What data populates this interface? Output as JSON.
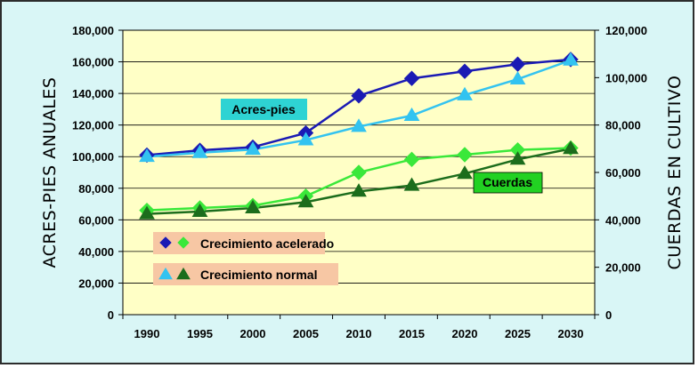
{
  "chart_data": {
    "type": "line",
    "title": "",
    "x": [
      1990,
      1995,
      2000,
      2005,
      2010,
      2015,
      2020,
      2025,
      2030
    ],
    "x_tick_labels": [
      "1990",
      "1995",
      "2000",
      "2005",
      "2010",
      "2015",
      "2020",
      "2025",
      "2030"
    ],
    "ylabel_left": "ACRES-PIES ANUALES",
    "ylabel_right": "CUERDAS EN CULTIVO",
    "ylim_left": [
      0,
      180000
    ],
    "ylim_right": [
      0,
      120000
    ],
    "y_ticks_left": [
      "0",
      "20,000",
      "40,000",
      "60,000",
      "80,000",
      "100,000",
      "120,000",
      "140,000",
      "160,000",
      "180,000"
    ],
    "y_ticks_right": [
      "0",
      "20,000",
      "40,000",
      "60,000",
      "80,000",
      "100,000",
      "120,000"
    ],
    "grid": "horizontal",
    "series": [
      {
        "axis": "left",
        "scenario": "accelerated",
        "color": "#1a1ab4",
        "marker": "diamond",
        "values": [
          101000,
          104000,
          106000,
          115000,
          138500,
          149500,
          154000,
          158500,
          161500
        ]
      },
      {
        "axis": "left",
        "scenario": "normal",
        "color": "#33c3f0",
        "marker": "triangle",
        "values": [
          100000,
          102500,
          104500,
          110500,
          119000,
          126000,
          139000,
          149000,
          161000
        ]
      },
      {
        "axis": "right",
        "scenario": "accelerated",
        "color": "#3ae83a",
        "marker": "diamond",
        "values": [
          44000,
          45000,
          46000,
          50000,
          60000,
          65500,
          67500,
          69500,
          70300
        ]
      },
      {
        "axis": "right",
        "scenario": "normal",
        "color": "#1c6d1c",
        "marker": "triangle",
        "values": [
          42500,
          43500,
          45000,
          47500,
          52000,
          54500,
          59500,
          65500,
          70000
        ]
      }
    ],
    "annotations": [
      {
        "text": "Acres-pies",
        "fill": "#2ed3d3"
      },
      {
        "text": "Cuerdas",
        "fill": "#22d122"
      }
    ],
    "legend": {
      "placement": "bottom-left",
      "fill": "#f7c7a4",
      "entries": [
        {
          "label": "Crecimiento acelerado",
          "marker": "diamond"
        },
        {
          "label": "Crecimiento normal",
          "marker": "triangle"
        }
      ]
    },
    "plot_background": "#ffffc6"
  }
}
